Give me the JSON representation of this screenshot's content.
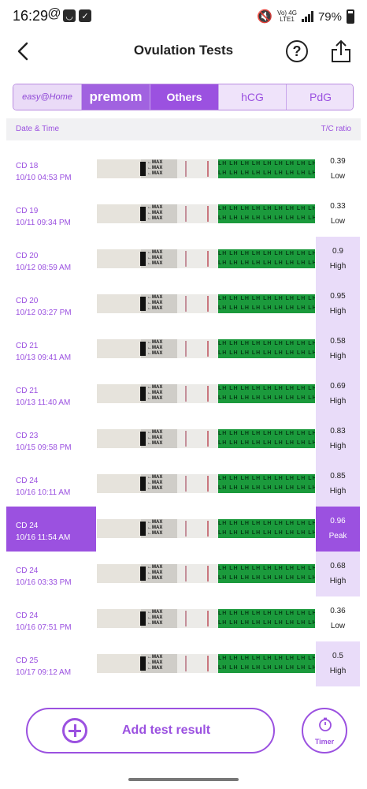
{
  "status_bar": {
    "time": "16:29",
    "battery": "79%",
    "network": "Vo) 4G",
    "network2": "LTE1"
  },
  "header": {
    "title": "Ovulation Tests"
  },
  "tabs": [
    {
      "label": "easy@Home"
    },
    {
      "label": "premom"
    },
    {
      "label": "Others"
    },
    {
      "label": "hCG"
    },
    {
      "label": "PdG"
    }
  ],
  "columns": {
    "left": "Date & Time",
    "right": "T/C ratio"
  },
  "strip_labels": {
    "max": "MAX",
    "lh": "LH LH LH LH LH LH LH LH LH LH"
  },
  "tests": [
    {
      "cd": "CD 18",
      "datetime": "10/10   04:53 PM",
      "ratio": "0.39",
      "level": "Low"
    },
    {
      "cd": "CD 19",
      "datetime": "10/11   09:34 PM",
      "ratio": "0.33",
      "level": "Low"
    },
    {
      "cd": "CD 20",
      "datetime": "10/12   08:59 AM",
      "ratio": "0.9",
      "level": "High"
    },
    {
      "cd": "CD 20",
      "datetime": "10/12   03:27 PM",
      "ratio": "0.95",
      "level": "High"
    },
    {
      "cd": "CD 21",
      "datetime": "10/13   09:41 AM",
      "ratio": "0.58",
      "level": "High"
    },
    {
      "cd": "CD 21",
      "datetime": "10/13   11:40 AM",
      "ratio": "0.69",
      "level": "High"
    },
    {
      "cd": "CD 23",
      "datetime": "10/15   09:58 PM",
      "ratio": "0.83",
      "level": "High"
    },
    {
      "cd": "CD 24",
      "datetime": "10/16   10:11 AM",
      "ratio": "0.85",
      "level": "High"
    },
    {
      "cd": "CD 24",
      "datetime": "10/16   11:54 AM",
      "ratio": "0.96",
      "level": "Peak"
    },
    {
      "cd": "CD 24",
      "datetime": "10/16   03:33 PM",
      "ratio": "0.68",
      "level": "High"
    },
    {
      "cd": "CD 24",
      "datetime": "10/16   07:51 PM",
      "ratio": "0.36",
      "level": "Low"
    },
    {
      "cd": "CD 25",
      "datetime": "10/17   09:12 AM",
      "ratio": "0.5",
      "level": "High"
    }
  ],
  "actions": {
    "add_label": "Add test result",
    "timer_label": "Timer"
  },
  "colors": {
    "accent": "#9b51e0",
    "high_bg": "#e9dcf9",
    "strip_green": "#1b9a3c"
  }
}
